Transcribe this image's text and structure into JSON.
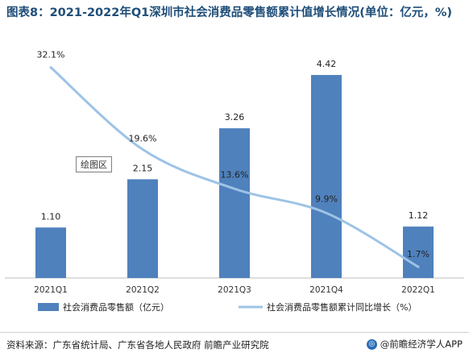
{
  "title": "图表8：2021-2022年Q1深圳市社会消费品零售额累计值增长情况(单位：亿元，%)",
  "plot_area_label": "绘图区",
  "source": "资料来源：广东省统计局、广东省各地人民政府 前瞻产业研究院",
  "brand": "@前瞻经济学人APP",
  "colors": {
    "bar": "#4f81bd",
    "line": "#9dc3e6",
    "title": "#1f4e79"
  },
  "chart_data": {
    "type": "bar",
    "categories": [
      "2021Q1",
      "2021Q2",
      "2021Q3",
      "2021Q4",
      "2022Q1"
    ],
    "series": [
      {
        "name": "社会消费品零售额（亿元）",
        "type": "bar",
        "axis": "left",
        "values": [
          1.1,
          2.15,
          3.26,
          4.42,
          1.12
        ],
        "labels": [
          "1.10",
          "2.15",
          "3.26",
          "4.42",
          "1.12"
        ]
      },
      {
        "name": "社会消费品零售额累计同比增长（%）",
        "type": "line",
        "axis": "right",
        "smooth": true,
        "values": [
          32.1,
          19.6,
          13.6,
          9.9,
          1.7
        ],
        "labels": [
          "32.1%",
          "19.6%",
          "13.6%",
          "9.9%",
          "1.7%"
        ]
      }
    ],
    "left_ylim": [
      0,
      5
    ],
    "right_ylim": [
      0,
      35
    ],
    "grid": false,
    "legend_position": "bottom"
  }
}
